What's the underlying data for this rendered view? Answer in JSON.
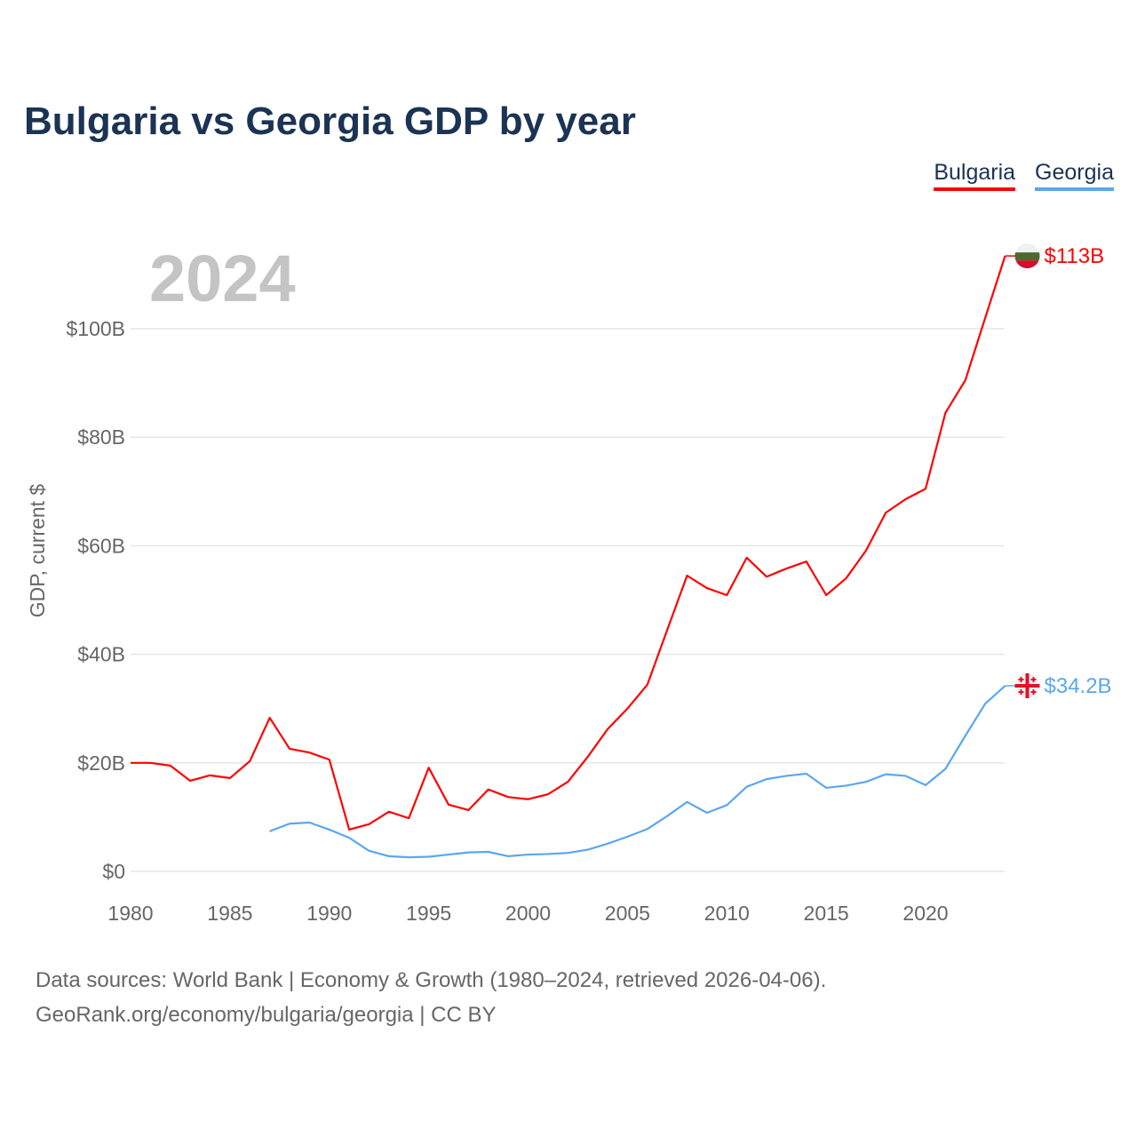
{
  "title": "Bulgaria vs Georgia GDP by year",
  "year_watermark": "2024",
  "source_lines": [
    "Data sources: World Bank | Economy & Growth (1980–2024, retrieved 2026-04-06).",
    "GeoRank.org/economy/bulgaria/georgia | CC BY"
  ],
  "chart_data": {
    "type": "line",
    "title": "Bulgaria vs Georgia GDP by year",
    "xlabel": "",
    "ylabel": "GDP, current $",
    "xlim": [
      1980,
      2024
    ],
    "ylim": [
      0,
      115
    ],
    "grid": true,
    "legend_position": "top-right",
    "x_ticks": [
      1980,
      1985,
      1990,
      1995,
      2000,
      2005,
      2010,
      2015,
      2020
    ],
    "x_tick_labels": [
      "1980",
      "1985",
      "1990",
      "1995",
      "2000",
      "2005",
      "2010",
      "2015",
      "2020"
    ],
    "y_ticks": [
      0,
      20,
      40,
      60,
      80,
      100
    ],
    "y_tick_labels": [
      "$0",
      "$20B",
      "$40B",
      "$60B",
      "$80B",
      "$100B"
    ],
    "series": [
      {
        "name": "Bulgaria",
        "color": "#ff0000",
        "end_label": "$113B",
        "x": [
          1980,
          1981,
          1982,
          1983,
          1984,
          1985,
          1986,
          1987,
          1988,
          1989,
          1990,
          1991,
          1992,
          1993,
          1994,
          1995,
          1996,
          1997,
          1998,
          1999,
          2000,
          2001,
          2002,
          2003,
          2004,
          2005,
          2006,
          2007,
          2008,
          2009,
          2010,
          2011,
          2012,
          2013,
          2014,
          2015,
          2016,
          2017,
          2018,
          2019,
          2020,
          2021,
          2022,
          2023,
          2024
        ],
        "values": [
          20.0,
          20.0,
          19.5,
          16.7,
          17.7,
          17.2,
          20.3,
          28.3,
          22.6,
          21.9,
          20.6,
          7.7,
          8.7,
          11.0,
          9.8,
          19.1,
          12.3,
          11.3,
          15.1,
          13.7,
          13.3,
          14.2,
          16.5,
          21.1,
          26.2,
          30.0,
          34.4,
          44.5,
          54.5,
          52.2,
          50.9,
          57.8,
          54.3,
          55.8,
          57.1,
          50.9,
          54.0,
          59.1,
          66.1,
          68.6,
          70.5,
          84.5,
          90.5,
          102.0,
          113.4
        ]
      },
      {
        "name": "Georgia",
        "color": "#5aa7ef",
        "end_label": "$34.2B",
        "x": [
          1987,
          1988,
          1989,
          1990,
          1991,
          1992,
          1993,
          1994,
          1995,
          1996,
          1997,
          1998,
          1999,
          2000,
          2001,
          2002,
          2003,
          2004,
          2005,
          2006,
          2007,
          2008,
          2009,
          2010,
          2011,
          2012,
          2013,
          2014,
          2015,
          2016,
          2017,
          2018,
          2019,
          2020,
          2021,
          2022,
          2023,
          2024
        ],
        "values": [
          7.4,
          8.8,
          9.0,
          7.7,
          6.2,
          3.8,
          2.8,
          2.6,
          2.7,
          3.1,
          3.5,
          3.6,
          2.8,
          3.1,
          3.2,
          3.4,
          4.0,
          5.1,
          6.4,
          7.8,
          10.2,
          12.8,
          10.8,
          12.2,
          15.6,
          17.0,
          17.6,
          18.0,
          15.4,
          15.8,
          16.5,
          17.9,
          17.6,
          15.9,
          18.9,
          25.0,
          30.9,
          34.2
        ]
      }
    ]
  }
}
